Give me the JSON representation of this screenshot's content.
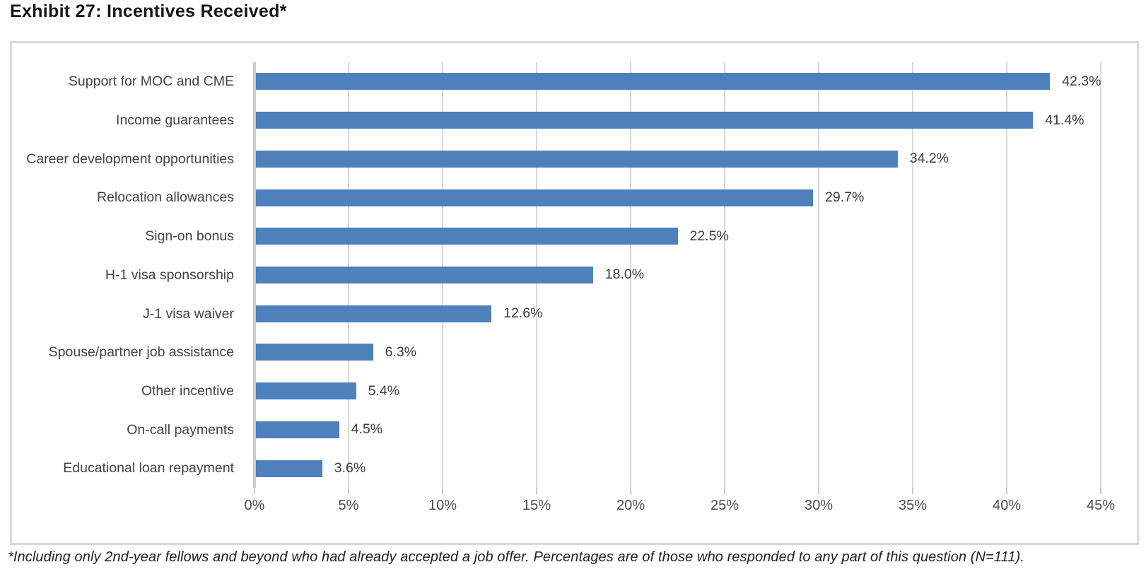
{
  "title": "Exhibit 27: Incentives Received*",
  "footnote": "*Including only 2nd-year fellows and beyond who had already accepted a job offer. Percentages are of those who responded to any part of this question (N=111).",
  "colors": {
    "bar": "#4e80bc",
    "gridline": "#d9d9d9",
    "axis_line": "#cdcdcd",
    "panel_border": "#d9d9d9",
    "category_text": "#434343",
    "value_text": "#3b3b3b",
    "tick_text": "#4d4d4d"
  },
  "chart_data": {
    "type": "bar",
    "orientation": "horizontal",
    "title": "Exhibit 27: Incentives Received*",
    "categories": [
      "Support for MOC and CME",
      "Income guarantees",
      "Career development opportunities",
      "Relocation allowances",
      "Sign-on bonus",
      "H-1 visa sponsorship",
      "J-1 visa waiver",
      "Spouse/partner job assistance",
      "Other incentive",
      "On-call payments",
      "Educational loan repayment"
    ],
    "values": [
      42.3,
      41.4,
      34.2,
      29.7,
      22.5,
      18.0,
      12.6,
      6.3,
      5.4,
      4.5,
      3.6
    ],
    "value_labels": [
      "42.3%",
      "41.4%",
      "34.2%",
      "29.7%",
      "22.5%",
      "18.0%",
      "12.6%",
      "6.3%",
      "5.4%",
      "4.5%",
      "3.6%"
    ],
    "xlabel": "",
    "ylabel": "",
    "xlim": [
      0,
      45
    ],
    "x_tick_values": [
      0,
      5,
      10,
      15,
      20,
      25,
      30,
      35,
      40,
      45
    ],
    "x_tick_labels": [
      "0%",
      "5%",
      "10%",
      "15%",
      "20%",
      "25%",
      "30%",
      "35%",
      "40%",
      "45%"
    ],
    "grid": true,
    "legend": false
  }
}
